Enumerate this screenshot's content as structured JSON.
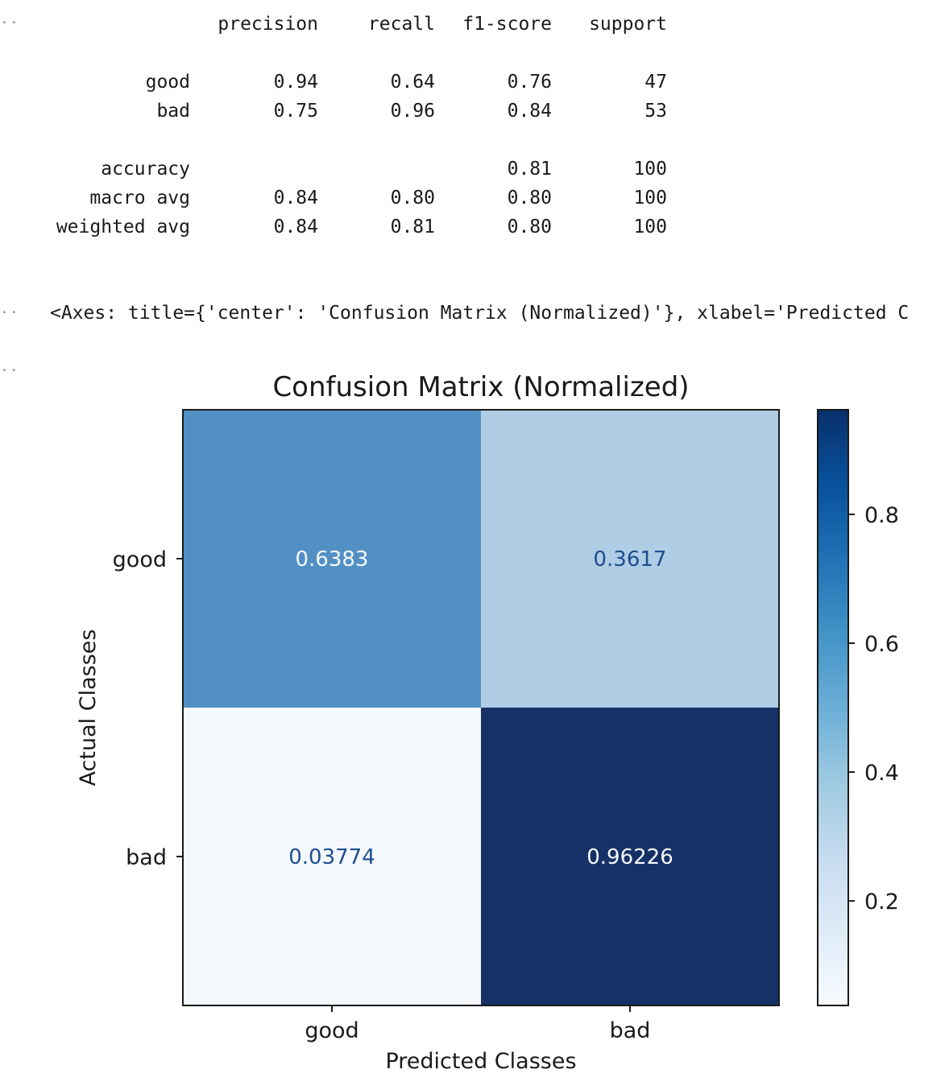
{
  "gutter": {
    "marker": "··"
  },
  "classification_report": {
    "headers": [
      "precision",
      "recall",
      "f1-score",
      "support"
    ],
    "rows": [
      {
        "label": "good",
        "values": [
          "0.94",
          "0.64",
          "0.76",
          "47"
        ]
      },
      {
        "label": "bad",
        "values": [
          "0.75",
          "0.96",
          "0.84",
          "53"
        ]
      },
      {
        "label": "accuracy",
        "values": [
          "",
          "",
          "0.81",
          "100"
        ]
      },
      {
        "label": "macro avg",
        "values": [
          "0.84",
          "0.80",
          "0.80",
          "100"
        ]
      },
      {
        "label": "weighted avg",
        "values": [
          "0.84",
          "0.81",
          "0.80",
          "100"
        ]
      }
    ]
  },
  "axes_repr": "<Axes: title={'center': 'Confusion Matrix (Normalized)'}, xlabel='Predicted C",
  "chart_data": {
    "type": "heatmap",
    "title": "Confusion Matrix (Normalized)",
    "xlabel": "Predicted Classes",
    "ylabel": "Actual Classes",
    "x_categories": [
      "good",
      "bad"
    ],
    "y_categories": [
      "good",
      "bad"
    ],
    "values": [
      [
        0.6383,
        0.3617
      ],
      [
        0.03774,
        0.96226
      ]
    ],
    "cell_labels": [
      [
        "0.6383",
        "0.3617"
      ],
      [
        "0.03774",
        "0.96226"
      ]
    ],
    "colormap": "Blues",
    "colorbar": {
      "range": [
        0.03774,
        0.96226
      ],
      "ticks": [
        0.2,
        0.4,
        0.6,
        0.8
      ],
      "tick_labels": [
        "0.2",
        "0.4",
        "0.6",
        "0.8"
      ]
    },
    "colors": {
      "cell_good_good": "#5290c4",
      "cell_good_bad": "#afcde4",
      "cell_bad_good": "#f5f9fe",
      "cell_bad_bad": "#163168",
      "text_light": "#f5f9fe",
      "text_dark": "#1f4e8f"
    }
  }
}
